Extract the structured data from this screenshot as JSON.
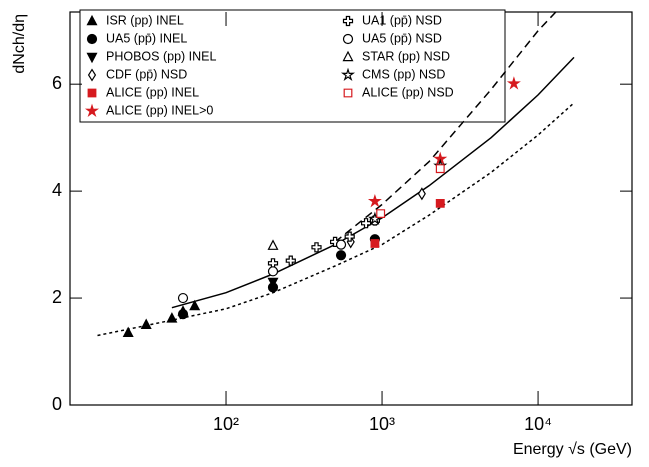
{
  "chart_data": {
    "type": "scatter",
    "xlabel": "Energy √s (GeV)",
    "ylabel": "dNch/dη",
    "xscale": "log",
    "xlim": [
      10,
      40000
    ],
    "ylim": [
      0,
      7.35
    ],
    "xticks": [
      {
        "value": 100,
        "label": "10²"
      },
      {
        "value": 1000,
        "label": "10³"
      },
      {
        "value": 10000,
        "label": "10⁴"
      }
    ],
    "yticks": [
      0,
      2,
      4,
      6
    ],
    "series": [
      {
        "name": "ISR (pp) INEL",
        "marker": "triangle-up",
        "filled": true,
        "color": "#000000",
        "x": [
          23.6,
          30.8,
          45,
          53,
          63
        ],
        "y": [
          1.35,
          1.5,
          1.62,
          1.75,
          1.85
        ]
      },
      {
        "name": "UA5 (pp̄) INEL",
        "marker": "circle",
        "filled": true,
        "color": "#000000",
        "x": [
          53,
          200,
          546,
          900
        ],
        "y": [
          1.7,
          2.2,
          2.8,
          3.1
        ]
      },
      {
        "name": "PHOBOS (pp) INEL",
        "marker": "triangle-down",
        "filled": true,
        "color": "#000000",
        "x": [
          200
        ],
        "y": [
          2.3
        ]
      },
      {
        "name": "CDF (pp̄) NSD",
        "marker": "diamond",
        "filled": false,
        "color": "#000000",
        "x": [
          630,
          1800
        ],
        "y": [
          3.05,
          3.95
        ]
      },
      {
        "name": "ALICE (pp) INEL",
        "marker": "square",
        "filled": true,
        "color": "#d61a1f",
        "x": [
          900,
          2360
        ],
        "y": [
          3.02,
          3.77
        ]
      },
      {
        "name": "ALICE (pp) INEL>0",
        "marker": "star",
        "filled": true,
        "color": "#d61a1f",
        "x": [
          900,
          2360,
          7000
        ],
        "y": [
          3.81,
          4.6,
          6.01
        ]
      },
      {
        "name": "UA1 (pp̄) NSD",
        "marker": "cross",
        "filled": false,
        "color": "#000000",
        "x": [
          200,
          260,
          380,
          500,
          620,
          790,
          900
        ],
        "y": [
          2.65,
          2.7,
          2.95,
          3.05,
          3.15,
          3.4,
          3.45
        ]
      },
      {
        "name": "UA5 (pp̄) NSD",
        "marker": "circle",
        "filled": false,
        "color": "#000000",
        "x": [
          53,
          200,
          546,
          900
        ],
        "y": [
          2.0,
          2.5,
          3.0,
          3.45
        ]
      },
      {
        "name": "STAR (pp) NSD",
        "marker": "triangle-up",
        "filled": false,
        "color": "#000000",
        "x": [
          200
        ],
        "y": [
          2.98
        ]
      },
      {
        "name": "CMS (pp) NSD",
        "marker": "star",
        "filled": false,
        "color": "#000000",
        "x": [
          900,
          2360
        ],
        "y": [
          3.48,
          4.47
        ]
      },
      {
        "name": "ALICE (pp) NSD",
        "marker": "square",
        "filled": false,
        "color": "#d61a1f",
        "x": [
          980,
          2360
        ],
        "y": [
          3.58,
          4.42
        ]
      }
    ],
    "curves": [
      {
        "style": "solid",
        "color": "#000000",
        "x": [
          45,
          100,
          200,
          500,
          1000,
          2000,
          5000,
          10000,
          17000
        ],
        "y": [
          1.82,
          2.1,
          2.45,
          3.0,
          3.5,
          4.1,
          5.0,
          5.8,
          6.5
        ]
      },
      {
        "style": "dashed",
        "color": "#000000",
        "x": [
          500,
          1000,
          2000,
          5000,
          10000,
          13000
        ],
        "y": [
          3.05,
          3.75,
          4.55,
          5.9,
          7.0,
          7.35
        ]
      },
      {
        "style": "dotted",
        "color": "#000000",
        "x": [
          15,
          30,
          100,
          200,
          500,
          1000,
          2000,
          5000,
          10000,
          17000
        ],
        "y": [
          1.3,
          1.48,
          1.8,
          2.1,
          2.6,
          3.0,
          3.55,
          4.35,
          5.05,
          5.65
        ]
      }
    ]
  }
}
